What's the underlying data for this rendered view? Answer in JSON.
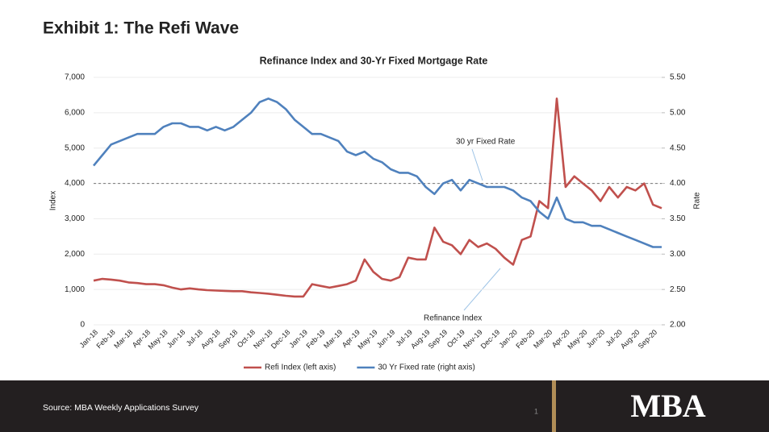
{
  "header": {
    "title": "Exhibit 1: The Refi Wave"
  },
  "chart_data": {
    "type": "line",
    "title": "Refinance Index and 30-Yr Fixed Mortgage Rate",
    "y_label": "Index",
    "y2_label": "Rate",
    "categories": [
      "Jan-18",
      null,
      "Feb-18",
      null,
      "Mar-18",
      null,
      "Apr-18",
      null,
      "May-18",
      null,
      "Jun-18",
      null,
      "Jul-18",
      null,
      "Aug-18",
      null,
      "Sep-18",
      null,
      "Oct-18",
      null,
      "Nov-18",
      null,
      "Dec-18",
      null,
      "Jan-19",
      null,
      "Feb-19",
      null,
      "Mar-19",
      null,
      "Apr-19",
      null,
      "May-19",
      null,
      "Jun-19",
      null,
      "Jul-19",
      null,
      "Aug-19",
      null,
      "Sep-19",
      null,
      "Oct-19",
      null,
      "Nov-19",
      null,
      "Dec-19",
      null,
      "Jan-20",
      null,
      "Feb-20",
      null,
      "Mar-20",
      null,
      "Apr-20",
      null,
      "May-20",
      null,
      "Jun-20",
      null,
      "Jul-20",
      null,
      "Aug-20",
      null,
      "Sep-20",
      null
    ],
    "series": [
      {
        "name": "Refi Index (left axis)",
        "color": "#c0504d",
        "values": [
          1250,
          1300,
          1280,
          1250,
          1200,
          1180,
          1150,
          1150,
          1120,
          1050,
          1000,
          1030,
          1000,
          980,
          970,
          960,
          950,
          950,
          920,
          900,
          880,
          850,
          820,
          800,
          800,
          1150,
          1100,
          1050,
          1100,
          1150,
          1250,
          1850,
          1500,
          1300,
          1250,
          1350,
          1900,
          1850,
          1850,
          2750,
          2350,
          2250,
          2000,
          2400,
          2200,
          2300,
          2150,
          1900,
          1700,
          2400,
          2500,
          3500,
          3300,
          6400,
          3900,
          4200,
          4000,
          3800,
          3500,
          3900,
          3600,
          3900,
          3800,
          4000,
          3400,
          3300
        ]
      },
      {
        "name": "30 Yr Fixed rate (right axis)",
        "color": "#4f81bd",
        "axis": "y2",
        "values": [
          4.25,
          4.4,
          4.55,
          4.6,
          4.65,
          4.7,
          4.7,
          4.7,
          4.8,
          4.85,
          4.85,
          4.8,
          4.8,
          4.75,
          4.8,
          4.75,
          4.8,
          4.9,
          5.0,
          5.15,
          5.2,
          5.15,
          5.05,
          4.9,
          4.8,
          4.7,
          4.7,
          4.65,
          4.6,
          4.45,
          4.4,
          4.45,
          4.35,
          4.3,
          4.2,
          4.15,
          4.15,
          4.1,
          3.95,
          3.85,
          4.0,
          4.05,
          3.9,
          4.05,
          4.0,
          3.95,
          3.95,
          3.95,
          3.9,
          3.8,
          3.75,
          3.6,
          3.5,
          3.8,
          3.5,
          3.45,
          3.45,
          3.4,
          3.4,
          3.35,
          3.3,
          3.25,
          3.2,
          3.15,
          3.1,
          3.1
        ]
      }
    ],
    "ylim": [
      0,
      7000
    ],
    "yticks": [
      0,
      {
        "value": 1000,
        "label": "1,000"
      },
      {
        "value": 2000,
        "label": "2,000"
      },
      {
        "value": 3000,
        "label": "3,000"
      },
      {
        "value": 4000,
        "label": "4,000"
      },
      {
        "value": 5000,
        "label": "5,000"
      },
      {
        "value": 6000,
        "label": "6,000"
      },
      {
        "value": 7000,
        "label": "7,000"
      }
    ],
    "y2lim": [
      2,
      5.5
    ],
    "y2ticks": [
      {
        "value": 2,
        "label": "2.00"
      },
      {
        "value": 2.5,
        "label": "2.50"
      },
      {
        "value": 3,
        "label": "3.00"
      },
      {
        "value": 3.5,
        "label": "3.50"
      },
      {
        "value": 4,
        "label": "4.00"
      },
      {
        "value": 4.5,
        "label": "4.50"
      },
      {
        "value": 5,
        "label": "5.00"
      },
      {
        "value": 5.5,
        "label": "5.50"
      }
    ],
    "y2_reference": 4,
    "annotations": [
      "30 yr Fixed Rate",
      "Refinance Index"
    ],
    "legend": "bottom"
  },
  "footer": {
    "source": "Source: MBA Weekly Applications Survey",
    "page": "1",
    "logo": "MBA"
  }
}
